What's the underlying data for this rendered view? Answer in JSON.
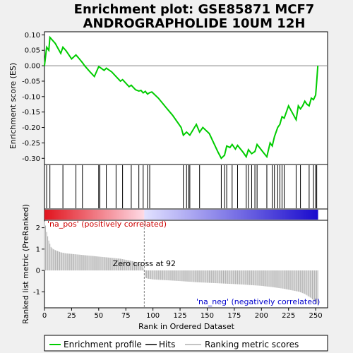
{
  "title_line1": "Enrichment plot: GSE85871 MCF7",
  "title_line2": "ANDROGRAPHOLIDE 10UM 12H",
  "legend": {
    "enrichment_profile": "Enrichment profile",
    "hits": "Hits",
    "ranking_metric": "Ranking metric scores"
  },
  "colors": {
    "profile": "#00cc00",
    "hits": "#000000",
    "metric": "#b0b0b0",
    "pos_label": "#cc0000",
    "neg_label": "#0000cc",
    "zero_line": "#808080"
  },
  "chart_data": [
    {
      "type": "line",
      "name": "enrichment-score",
      "ylabel": "Enrichment score (ES)",
      "xlim": [
        0,
        261
      ],
      "ylim": [
        -0.32,
        0.11
      ],
      "yticks": [
        0.1,
        0.05,
        0.0,
        -0.05,
        -0.1,
        -0.15,
        -0.2,
        -0.25,
        -0.3
      ],
      "ytick_labels": [
        "0.10",
        "0.05",
        "0.00",
        "-0.05",
        "-0.10",
        "-0.15",
        "-0.20",
        "-0.25",
        "-0.30"
      ],
      "grid": false,
      "x": [
        0,
        2,
        4,
        5,
        10,
        15,
        17,
        20,
        25,
        29,
        31,
        35,
        37,
        42,
        46,
        50,
        51,
        55,
        57,
        62,
        66,
        70,
        72,
        78,
        80,
        84,
        87,
        89,
        91,
        93,
        95,
        97,
        99,
        105,
        112,
        118,
        126,
        128,
        131,
        134,
        140,
        143,
        146,
        152,
        156,
        160,
        163,
        166,
        168,
        171,
        173,
        176,
        178,
        183,
        186,
        188,
        191,
        194,
        196,
        202,
        205,
        208,
        210,
        212,
        215,
        217,
        219,
        221,
        225,
        232,
        234,
        236,
        238,
        240,
        242,
        244,
        246,
        248,
        250,
        251,
        252
      ],
      "y": [
        0.0,
        0.06,
        0.05,
        0.092,
        0.072,
        0.04,
        0.06,
        0.048,
        0.022,
        0.035,
        0.027,
        0.01,
        0.0,
        -0.02,
        -0.035,
        -0.003,
        -0.005,
        -0.015,
        -0.008,
        -0.02,
        -0.035,
        -0.05,
        -0.045,
        -0.068,
        -0.063,
        -0.078,
        -0.082,
        -0.08,
        -0.088,
        -0.083,
        -0.092,
        -0.087,
        -0.085,
        -0.105,
        -0.135,
        -0.16,
        -0.2,
        -0.225,
        -0.215,
        -0.225,
        -0.19,
        -0.215,
        -0.2,
        -0.22,
        -0.25,
        -0.28,
        -0.3,
        -0.29,
        -0.26,
        -0.265,
        -0.255,
        -0.27,
        -0.258,
        -0.28,
        -0.295,
        -0.272,
        -0.285,
        -0.278,
        -0.255,
        -0.282,
        -0.295,
        -0.25,
        -0.26,
        -0.23,
        -0.2,
        -0.19,
        -0.165,
        -0.17,
        -0.13,
        -0.175,
        -0.13,
        -0.14,
        -0.13,
        -0.115,
        -0.125,
        -0.13,
        -0.105,
        -0.11,
        -0.095,
        -0.05,
        0.0
      ]
    },
    {
      "type": "scatter",
      "name": "hits",
      "xlim": [
        0,
        261
      ],
      "x": [
        2,
        5,
        17,
        29,
        35,
        50,
        51,
        57,
        66,
        72,
        80,
        87,
        91,
        95,
        97,
        128,
        131,
        133,
        134,
        143,
        163,
        166,
        168,
        173,
        178,
        186,
        188,
        191,
        194,
        196,
        205,
        210,
        212,
        215,
        217,
        219,
        221,
        232,
        236,
        244,
        248,
        250,
        251
      ]
    },
    {
      "type": "area",
      "name": "ranking-metric",
      "xlabel": "Rank in Ordered Dataset",
      "ylabel": "Ranked list metric (PreRanked)",
      "xlim": [
        0,
        261
      ],
      "ylim": [
        -1.75,
        2.35
      ],
      "xticks": [
        0,
        25,
        50,
        75,
        100,
        125,
        150,
        175,
        200,
        225,
        250
      ],
      "xtick_labels": [
        "0",
        "25",
        "50",
        "75",
        "100",
        "125",
        "150",
        "175",
        "200",
        "225",
        "250"
      ],
      "yticks": [
        2,
        1,
        0,
        -1
      ],
      "ytick_labels": [
        "2",
        "1",
        "0",
        "-1"
      ],
      "x": [
        0,
        1,
        2,
        3,
        4,
        6,
        8,
        10,
        15,
        20,
        30,
        40,
        50,
        60,
        70,
        80,
        85,
        90,
        91,
        92,
        93,
        95,
        100,
        120,
        140,
        160,
        180,
        200,
        210,
        220,
        230,
        235,
        240,
        243,
        246,
        248,
        250,
        252
      ],
      "y": [
        2.3,
        2.1,
        1.8,
        1.6,
        1.4,
        1.1,
        1.0,
        0.95,
        0.85,
        0.8,
        0.75,
        0.7,
        0.65,
        0.6,
        0.55,
        0.45,
        0.38,
        0.25,
        0.1,
        0.02,
        -0.35,
        -0.38,
        -0.42,
        -0.48,
        -0.55,
        -0.6,
        -0.65,
        -0.72,
        -0.78,
        -0.85,
        -0.95,
        -1.0,
        -1.1,
        -1.2,
        -1.3,
        -1.4,
        -1.5,
        -1.6
      ],
      "zero_cross_label": "Zero cross at 92",
      "zero_cross_x": 92,
      "pos_label": "'na_pos' (positively correlated)",
      "neg_label": "'na_neg' (negatively correlated)"
    }
  ]
}
